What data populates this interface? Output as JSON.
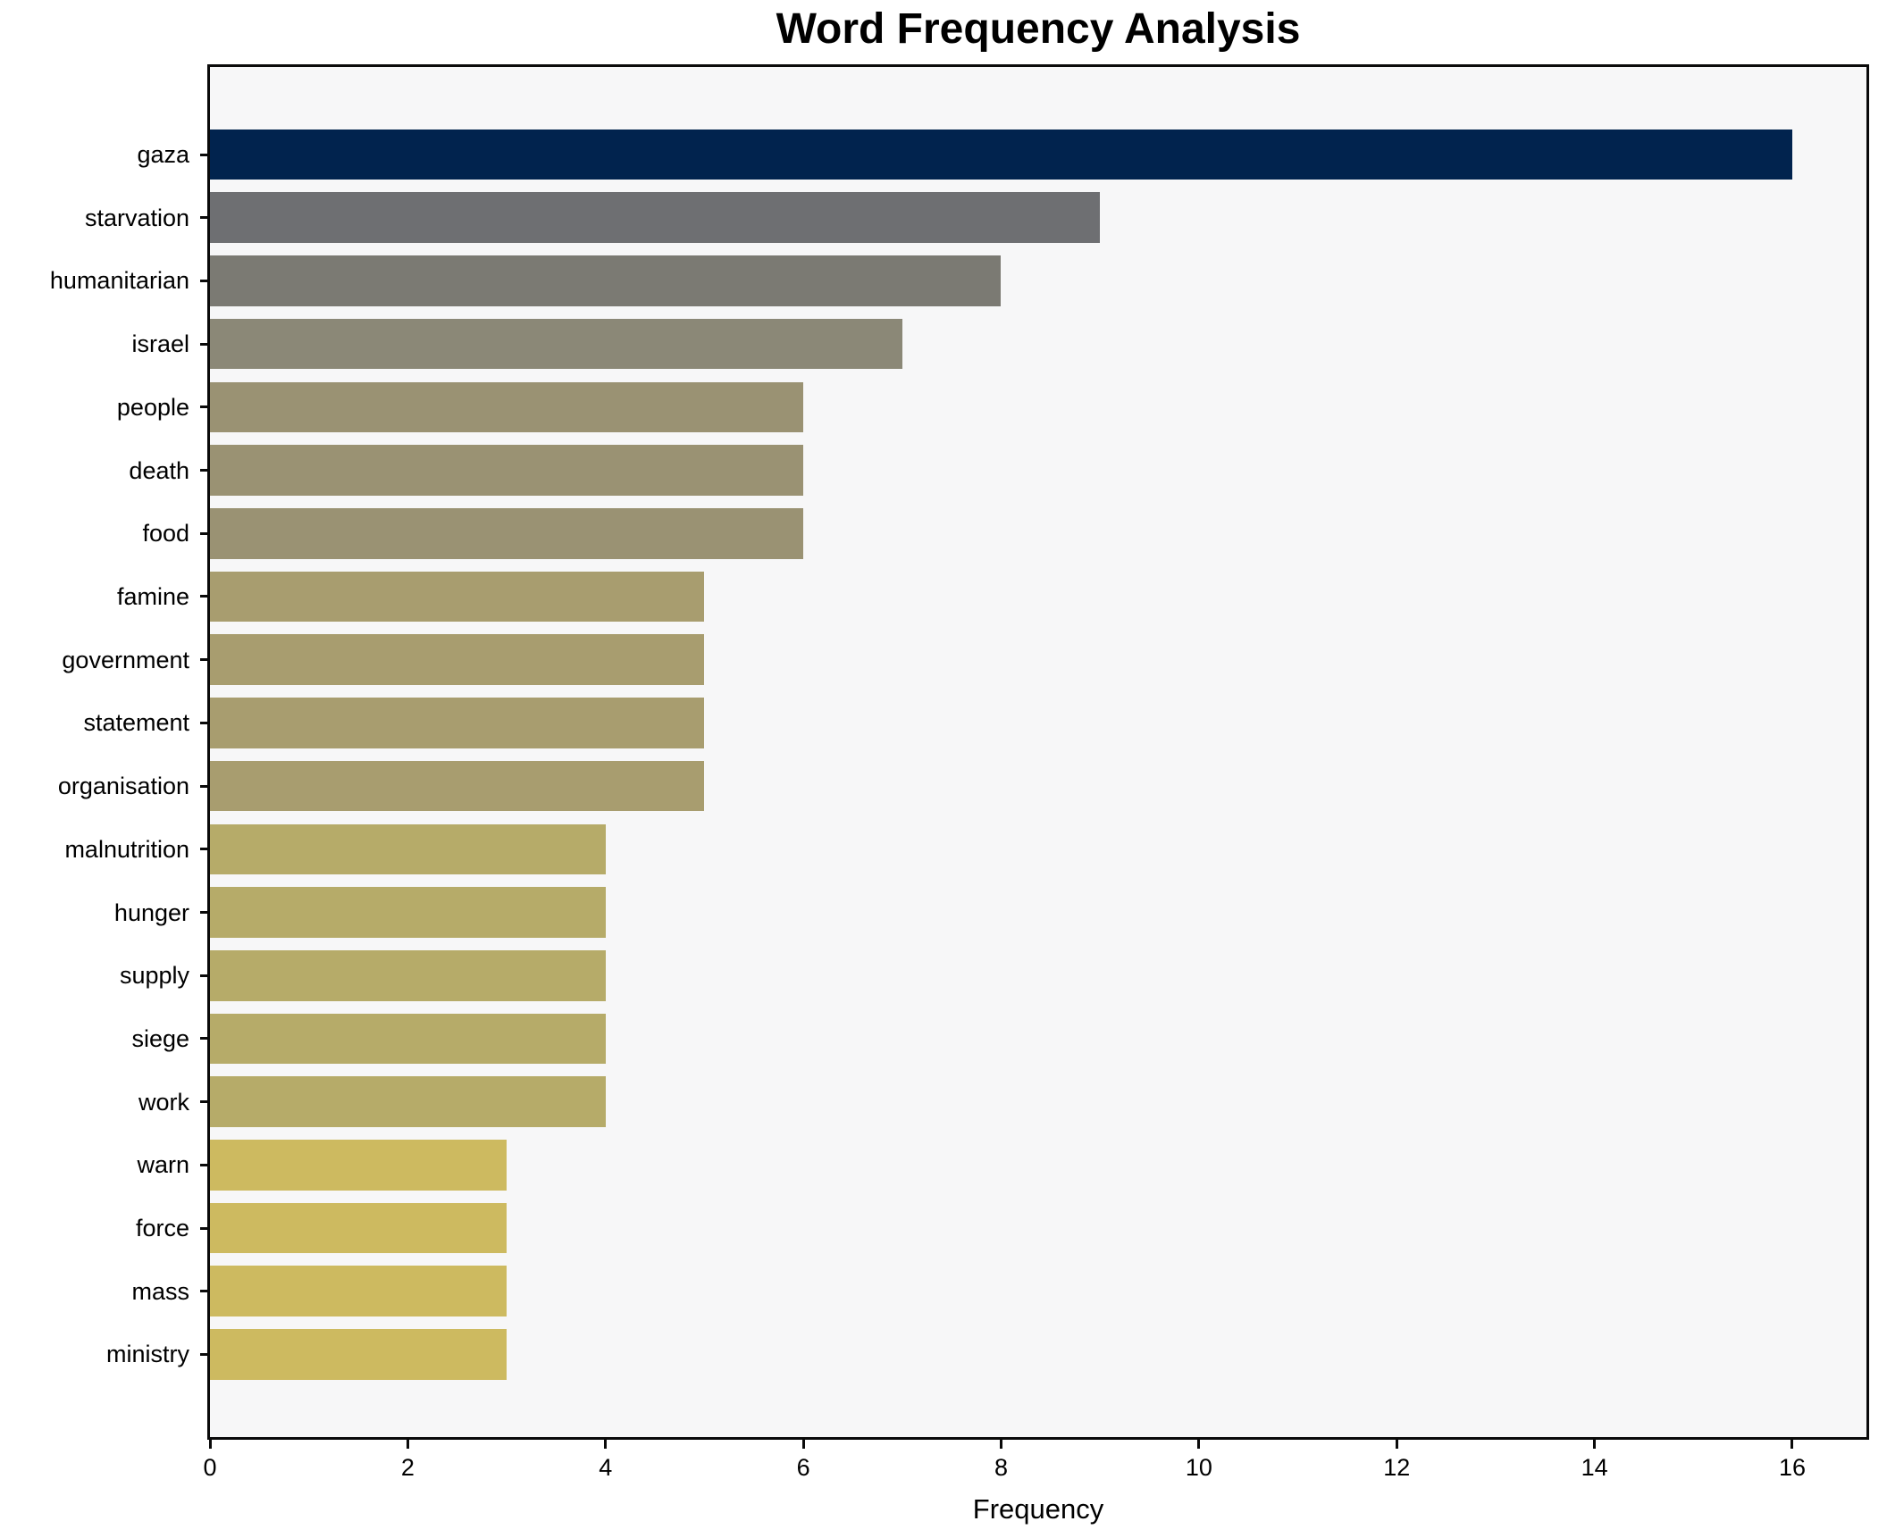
{
  "title": "Word Frequency Analysis",
  "chart_data": {
    "type": "bar",
    "orientation": "horizontal",
    "title": "Word Frequency Analysis",
    "xlabel": "Frequency",
    "ylabel": "",
    "categories": [
      "gaza",
      "starvation",
      "humanitarian",
      "israel",
      "people",
      "death",
      "food",
      "famine",
      "government",
      "statement",
      "organisation",
      "malnutrition",
      "hunger",
      "supply",
      "siege",
      "work",
      "warn",
      "force",
      "mass",
      "ministry"
    ],
    "values": [
      16,
      9,
      8,
      7,
      6,
      6,
      6,
      5,
      5,
      5,
      5,
      4,
      4,
      4,
      4,
      4,
      3,
      3,
      3,
      3
    ],
    "bar_colors": [
      "#01234e",
      "#6e6f72",
      "#7b7a73",
      "#8b8877",
      "#9a9273",
      "#9a9273",
      "#9a9273",
      "#a89d6f",
      "#a89d6f",
      "#a89d6f",
      "#a89d6f",
      "#b6ab69",
      "#b6ab69",
      "#b6ab69",
      "#b6ab69",
      "#b6ab69",
      "#cdba60",
      "#cdba60",
      "#cdba60",
      "#cdba60"
    ],
    "x_ticks": [
      0,
      2,
      4,
      6,
      8,
      10,
      12,
      14,
      16
    ],
    "xlim": [
      0,
      16.75
    ],
    "grid": false,
    "legend_position": "none",
    "plot_background": "#f7f7f8",
    "figure_background": "#ffffff",
    "spine_color": "#0a0a0a",
    "colormap": "cividis-reversed"
  }
}
